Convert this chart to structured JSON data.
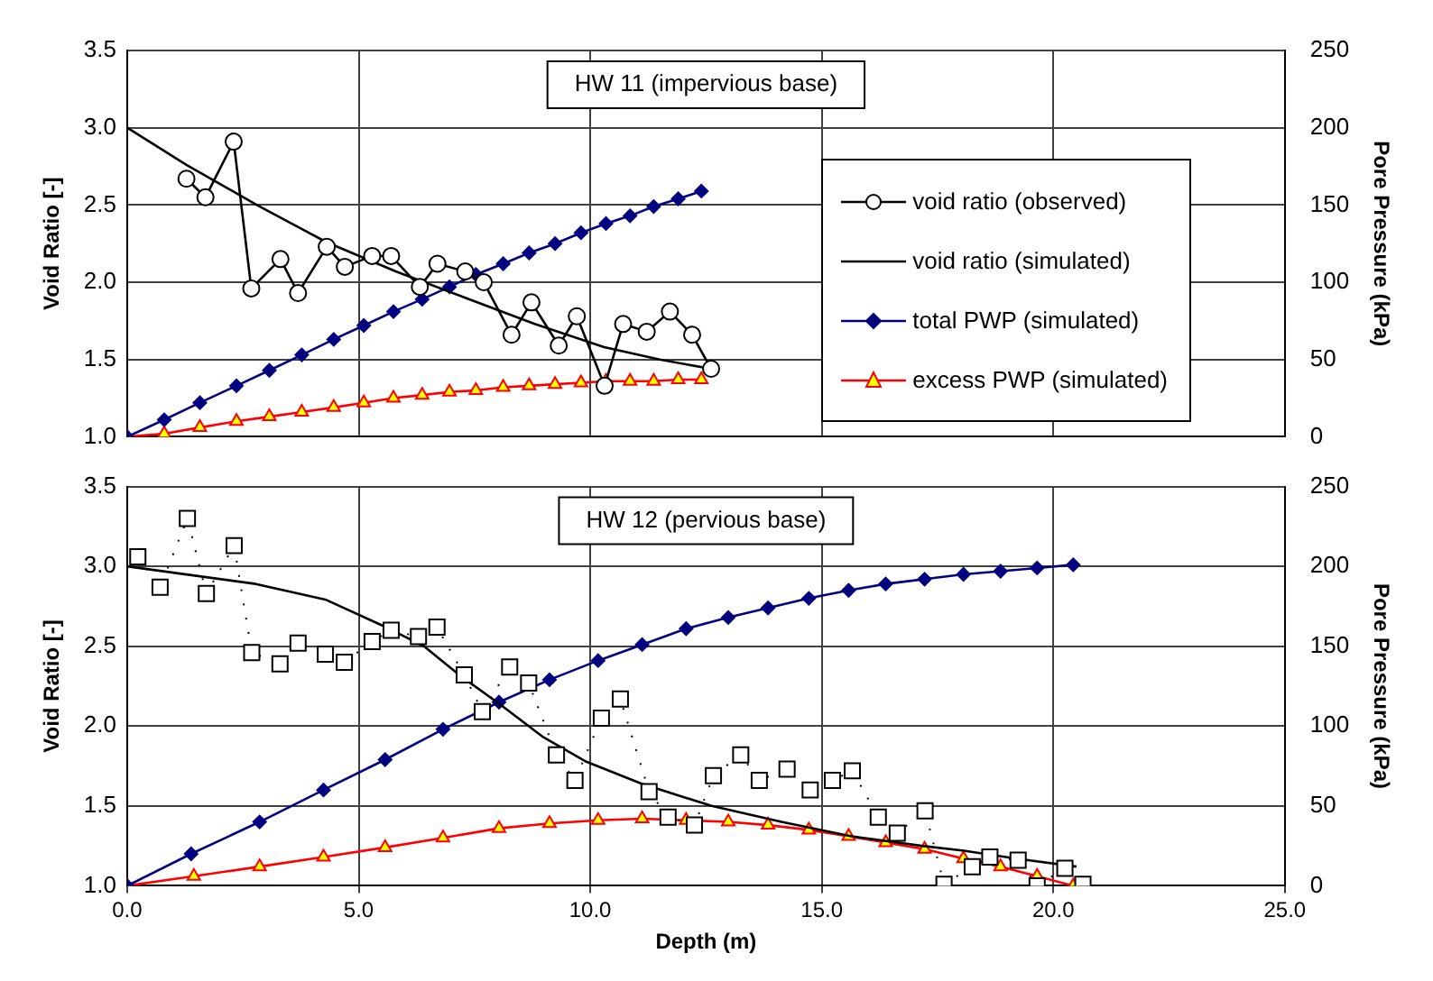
{
  "chart_data": [
    {
      "type": "line",
      "title": "HW 11 (impervious base)",
      "ylabel": "Void Ratio [-]",
      "y2label": "Pore Pressure (kPa)",
      "xlim": [
        0,
        25
      ],
      "xticks": [
        0,
        5,
        10,
        15,
        20,
        25
      ],
      "ylim": [
        1,
        3.5
      ],
      "yticks": [
        {
          "value": 1,
          "label": "1.0"
        },
        {
          "value": 1.5,
          "label": "1.5"
        },
        {
          "value": 2,
          "label": "2.0"
        },
        {
          "value": 2.5,
          "label": "2.5"
        },
        {
          "value": 3,
          "label": "3.0"
        },
        {
          "value": 3.5,
          "label": "3.5"
        }
      ],
      "y2lim": [
        0,
        250
      ],
      "y2ticks": [
        0,
        50,
        100,
        150,
        200,
        250
      ],
      "grid": true,
      "legend": "right",
      "tick_labels": "y",
      "series": [
        {
          "name": "void ratio (observed)",
          "color": "#000000",
          "marker": "circle",
          "line_style": "solid",
          "x": [
            1.28,
            1.69,
            2.3,
            2.68,
            3.31,
            3.69,
            4.31,
            4.7,
            5.29,
            5.7,
            6.32,
            6.7,
            7.3,
            7.7,
            8.3,
            8.73,
            9.32,
            9.71,
            10.31,
            10.71,
            11.22,
            11.72,
            12.2,
            12.61
          ],
          "values": [
            2.67,
            2.55,
            2.91,
            1.96,
            2.15,
            1.93,
            2.23,
            2.1,
            2.17,
            2.17,
            1.97,
            2.12,
            2.07,
            2.0,
            1.66,
            1.87,
            1.59,
            1.78,
            1.33,
            1.73,
            1.68,
            1.81,
            1.66,
            1.44
          ]
        },
        {
          "name": "void ratio (simulated)",
          "color": "#000000",
          "marker": "none",
          "line_style": "solid",
          "x": [
            0,
            1.28,
            2.8,
            4.3,
            5.8,
            7.3,
            8.8,
            10.3,
            11.5,
            12.6
          ],
          "values": [
            3.0,
            2.76,
            2.5,
            2.26,
            2.07,
            1.9,
            1.73,
            1.58,
            1.5,
            1.44
          ]
        },
        {
          "name": "total PWP (simulated)",
          "color": "#000080",
          "marker": "diamond",
          "line_style": "solid",
          "axis": "y2",
          "x": [
            0,
            0.8,
            1.57,
            2.36,
            3.07,
            3.77,
            4.46,
            5.11,
            5.75,
            6.37,
            6.96,
            7.53,
            8.12,
            8.68,
            9.24,
            9.8,
            10.34,
            10.86,
            11.37,
            11.9,
            12.4
          ],
          "values": [
            0,
            11,
            22,
            33,
            43,
            53,
            63,
            72,
            81,
            89,
            97,
            105,
            112,
            119,
            125,
            132,
            138,
            143,
            149,
            154,
            159
          ]
        },
        {
          "name": "excess PWP (simulated)",
          "color": "#ff0000",
          "marker": "triangle",
          "line_style": "solid",
          "axis": "y2",
          "x": [
            0,
            0.8,
            1.57,
            2.36,
            3.07,
            3.77,
            4.46,
            5.11,
            5.75,
            6.37,
            6.96,
            7.53,
            8.12,
            8.68,
            9.24,
            9.8,
            10.34,
            10.86,
            11.37,
            11.9,
            12.4
          ],
          "values": [
            0,
            2,
            6,
            10,
            13,
            16,
            19,
            22,
            25,
            27,
            29,
            30,
            32,
            33,
            34,
            35,
            36,
            36,
            36,
            37,
            37
          ]
        }
      ]
    },
    {
      "type": "line",
      "title": "HW 12 (pervious base)",
      "xlabel": "Depth (m)",
      "ylabel": "Void Ratio [-]",
      "y2label": "Pore Pressure (kPa)",
      "xlim": [
        0,
        25
      ],
      "xticks": [
        {
          "value": 0,
          "label": "0.0"
        },
        {
          "value": 5,
          "label": "5.0"
        },
        {
          "value": 10,
          "label": "10.0"
        },
        {
          "value": 15,
          "label": "15.0"
        },
        {
          "value": 20,
          "label": "20.0"
        },
        {
          "value": 25,
          "label": "25.0"
        }
      ],
      "ylim": [
        1,
        3.5
      ],
      "yticks": [
        {
          "value": 1,
          "label": "1.0"
        },
        {
          "value": 1.5,
          "label": "1.5"
        },
        {
          "value": 2,
          "label": "2.0"
        },
        {
          "value": 2.5,
          "label": "2.5"
        },
        {
          "value": 3,
          "label": "3.0"
        },
        {
          "value": 3.5,
          "label": "3.5"
        }
      ],
      "y2lim": [
        0,
        250
      ],
      "y2ticks": [
        0,
        50,
        100,
        150,
        200,
        250
      ],
      "grid": true,
      "series": [
        {
          "color": "#000000",
          "marker": "square",
          "line_style": "dotted",
          "x": [
            0.23,
            0.71,
            1.3,
            1.71,
            2.31,
            2.69,
            3.3,
            3.69,
            4.28,
            4.69,
            5.29,
            5.7,
            6.29,
            6.69,
            7.28,
            7.67,
            8.26,
            8.67,
            9.27,
            9.67,
            10.24,
            10.65,
            11.27,
            11.68,
            12.25,
            12.66,
            13.25,
            13.65,
            14.25,
            14.75,
            15.23,
            15.66,
            16.22,
            16.63,
            17.23,
            17.64,
            18.25,
            18.63,
            19.24,
            19.65,
            20.25,
            20.64
          ],
          "values": [
            3.06,
            2.87,
            3.3,
            2.83,
            3.13,
            2.46,
            2.39,
            2.52,
            2.45,
            2.4,
            2.53,
            2.6,
            2.56,
            2.62,
            2.32,
            2.09,
            2.37,
            2.27,
            1.82,
            1.66,
            2.05,
            2.17,
            1.59,
            1.43,
            1.38,
            1.69,
            1.82,
            1.66,
            1.73,
            1.6,
            1.66,
            1.72,
            1.43,
            1.33,
            1.47,
            1.01,
            1.12,
            1.18,
            1.16,
            1.0,
            1.11,
            1.01
          ]
        },
        {
          "color": "#000000",
          "marker": "none",
          "line_style": "solid",
          "x": [
            0,
            2.78,
            4.3,
            5.51,
            6.41,
            7.17,
            8.08,
            8.99,
            9.89,
            11.1,
            12.62,
            14.13,
            15.64,
            17.16,
            18.07,
            19.2,
            20.5
          ],
          "values": [
            3.0,
            2.89,
            2.79,
            2.63,
            2.5,
            2.32,
            2.13,
            1.93,
            1.78,
            1.64,
            1.5,
            1.4,
            1.31,
            1.25,
            1.22,
            1.17,
            1.12
          ]
        },
        {
          "color": "#000080",
          "marker": "diamond",
          "line_style": "solid",
          "axis": "y2",
          "x": [
            0,
            1.38,
            2.86,
            4.24,
            5.57,
            6.82,
            8.03,
            9.12,
            10.17,
            11.12,
            12.07,
            12.98,
            13.84,
            14.72,
            15.58,
            16.38,
            17.22,
            18.06,
            18.86,
            19.65,
            20.43
          ],
          "values": [
            0,
            20,
            40,
            60,
            79,
            98,
            115,
            129,
            141,
            151,
            161,
            168,
            174,
            180,
            185,
            189,
            192,
            195,
            197,
            199,
            201
          ]
        },
        {
          "color": "#ff0000",
          "marker": "triangle",
          "line_style": "solid",
          "axis": "y2",
          "x": [
            0,
            1.44,
            2.86,
            4.24,
            5.57,
            6.82,
            8.03,
            9.12,
            10.17,
            11.12,
            12.07,
            12.98,
            13.84,
            14.72,
            15.58,
            16.38,
            17.22,
            18.06,
            18.86,
            19.65,
            20.43
          ],
          "values": [
            0,
            6,
            12,
            18,
            24,
            30,
            36,
            39,
            41,
            42,
            41,
            40,
            38,
            35,
            31,
            27,
            23,
            17,
            12,
            6,
            0
          ]
        }
      ]
    }
  ]
}
